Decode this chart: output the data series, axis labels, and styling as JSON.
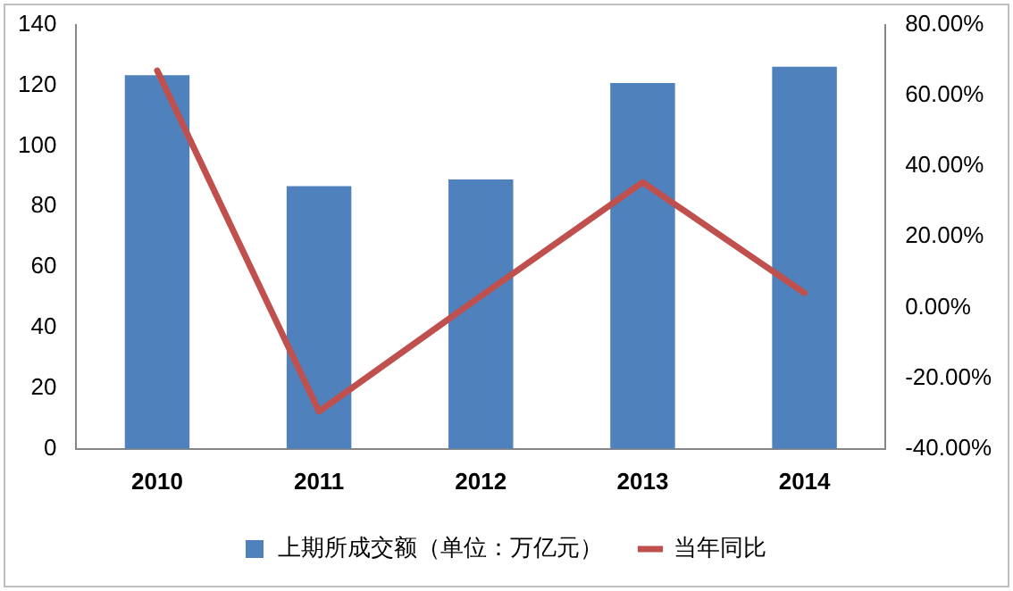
{
  "chart_data": {
    "type": "bar",
    "categories": [
      "2010",
      "2011",
      "2012",
      "2013",
      "2014"
    ],
    "series": [
      {
        "name": "上期所成交额（单位：万亿元）",
        "color": "#4f81bd",
        "values": [
          123.3,
          86.7,
          88.9,
          120.7,
          126.1
        ]
      },
      {
        "name": "当年同比",
        "type": "line",
        "axis": "y2",
        "color": "#c0504d",
        "values": [
          67.0,
          -29.4,
          3.2,
          35.4,
          4.1
        ]
      }
    ],
    "ylim": [
      0,
      140
    ],
    "yticks": [
      0,
      20,
      40,
      60,
      80,
      100,
      120,
      140
    ],
    "y2lim": [
      -40,
      80
    ],
    "y2ticks": [
      {
        "value": -40,
        "label": "-40.00%"
      },
      {
        "value": -20,
        "label": "-20.00%"
      },
      {
        "value": 0,
        "label": "0.00%"
      },
      {
        "value": 20,
        "label": "20.00%"
      },
      {
        "value": 40,
        "label": "40.00%"
      },
      {
        "value": 60,
        "label": "60.00%"
      },
      {
        "value": 80,
        "label": "80.00%"
      }
    ],
    "grid": false,
    "legend": "bottom",
    "marker": "none",
    "line_style": "solid"
  }
}
